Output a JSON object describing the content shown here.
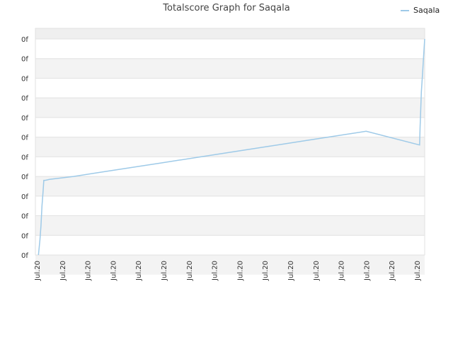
{
  "chart_data": {
    "type": "line",
    "title": "Totalscore Graph for Saqala",
    "legend": "top-right",
    "grid": true,
    "x_tick_labels": [
      "Jul.20",
      "Jul.20",
      "Jul.20",
      "Jul.20",
      "Jul.20",
      "Jul.20",
      "Jul.20",
      "Jul.20",
      "Jul.20",
      "Jul.20",
      "Jul.20",
      "Jul.20",
      "Jul.20",
      "Jul.20",
      "Jul.20",
      "Jul.20"
    ],
    "y_tick_labels": [
      "0f",
      "0f",
      "0f",
      "0f",
      "0f",
      "0f",
      "0f",
      "0f",
      "0f",
      "0f",
      "0f",
      "0f"
    ],
    "ylim": [
      0,
      11
    ],
    "xlim": [
      0,
      15.3
    ],
    "series": [
      {
        "name": "Saqala",
        "color": "#9ecae8",
        "x": [
          0.12,
          0.18,
          0.22,
          0.26,
          0.3,
          0.33,
          0.38,
          0.45,
          0.55,
          1.5,
          3,
          5,
          7,
          9,
          11,
          13,
          15.1,
          15.12,
          15.17,
          15.22,
          15.26,
          15.3
        ],
        "y": [
          0,
          0.8,
          1.5,
          2.5,
          3.2,
          3.8,
          3.8,
          3.82,
          3.85,
          4.0,
          4.3,
          4.7,
          5.1,
          5.5,
          5.9,
          6.3,
          5.6,
          6.5,
          8.3,
          9.3,
          10.2,
          11
        ]
      }
    ]
  }
}
